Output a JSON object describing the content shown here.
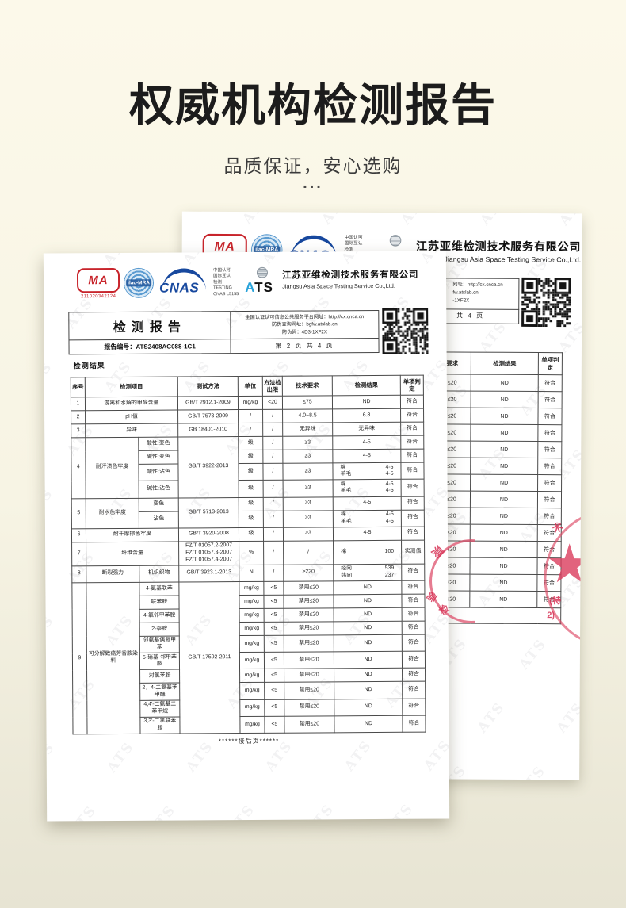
{
  "header": {
    "title": "权威机构检测报告",
    "subtitle": "品质保证，安心选购",
    "dots": "..."
  },
  "watermark_text": "ATS",
  "logos": {
    "cma_text": "MA",
    "cma_number": "211020342124",
    "ilac_text": "ilac-MRA",
    "cnas_text": "CNAS",
    "accreditation_lines": [
      "中国认可",
      "国际互认",
      "检测",
      "TESTING",
      "CNAS L5155"
    ],
    "ats_text": "ATS"
  },
  "company": {
    "name_cn": "江苏亚维检测技术服务有限公司",
    "name_en": "Jiangsu Asia Space Testing Service Co.,Ltd."
  },
  "front_page": {
    "report_header": {
      "report_title": "检测报告",
      "service_url_line": "全国认证认可信息公共服务平台网址：http://cx.cnca.cn",
      "anti_fake_url_line": "防伪查询网址：bgfw.atslab.cn",
      "anti_fake_code_line": "防伪码：4D3-1XF2X",
      "report_no_line": "报告编号：ATS2408AC088-1C1",
      "page_line": "第 2 页 共 4 页"
    },
    "results_label": "检测结果",
    "footer_note": "******接后页******",
    "table": {
      "header_cells": [
        {
          "t": "序号"
        },
        {
          "t": "检测项目",
          "cs": 2
        },
        {
          "t": "测试方法"
        },
        {
          "t": "单位"
        },
        {
          "t": "方法检出限"
        },
        {
          "t": "技术要求"
        },
        {
          "t": "检测结果"
        },
        {
          "t": "单项判定"
        }
      ],
      "rows": [
        [
          {
            "t": "1"
          },
          {
            "t": "游离和水解的甲醛含量",
            "cs": 2
          },
          {
            "t": "GB/T 2912.1-2009"
          },
          {
            "t": "mg/kg"
          },
          {
            "t": "<20"
          },
          {
            "t": "≤75"
          },
          {
            "t": "ND"
          },
          {
            "t": "符合"
          }
        ],
        [
          {
            "t": "2"
          },
          {
            "t": "pH值",
            "cs": 2
          },
          {
            "t": "GB/T 7573-2009"
          },
          {
            "t": "/"
          },
          {
            "t": "/"
          },
          {
            "t": "4.0~8.5"
          },
          {
            "t": "6.8"
          },
          {
            "t": "符合"
          }
        ],
        [
          {
            "t": "3"
          },
          {
            "t": "异味",
            "cs": 2
          },
          {
            "t": "GB 18401-2010"
          },
          {
            "t": "/"
          },
          {
            "t": "/"
          },
          {
            "t": "无异味"
          },
          {
            "t": "无异味"
          },
          {
            "t": "符合"
          }
        ],
        [
          {
            "t": "4",
            "rs": 4
          },
          {
            "t": "耐汗渍色牢度",
            "rs": 4
          },
          {
            "t": "酸性:变色"
          },
          {
            "t": "GB/T 3922-2013",
            "rs": 4
          },
          {
            "t": "级"
          },
          {
            "t": "/"
          },
          {
            "t": "≥3"
          },
          {
            "t": "4-5"
          },
          {
            "t": "符合"
          }
        ],
        [
          {
            "t": "碱性:变色"
          },
          {
            "t": "级"
          },
          {
            "t": "/"
          },
          {
            "t": "≥3"
          },
          {
            "t": "4-5"
          },
          {
            "t": "符合"
          }
        ],
        [
          {
            "t": "酸性:沾色"
          },
          {
            "t": "级"
          },
          {
            "t": "/"
          },
          {
            "t": "≥3"
          },
          {
            "pairs": [
              [
                "棉",
                "4-5"
              ],
              [
                "羊毛",
                "4-5"
              ]
            ]
          },
          {
            "t": "符合"
          }
        ],
        [
          {
            "t": "碱性:沾色"
          },
          {
            "t": "级"
          },
          {
            "t": "/"
          },
          {
            "t": "≥3"
          },
          {
            "pairs": [
              [
                "棉",
                "4-5"
              ],
              [
                "羊毛",
                "4-5"
              ]
            ]
          },
          {
            "t": "符合"
          }
        ],
        [
          {
            "t": "5",
            "rs": 2
          },
          {
            "t": "耐水色牢度",
            "rs": 2
          },
          {
            "t": "变色"
          },
          {
            "t": "GB/T 5713-2013",
            "rs": 2
          },
          {
            "t": "级"
          },
          {
            "t": "/"
          },
          {
            "t": "≥3"
          },
          {
            "t": "4-5"
          },
          {
            "t": "符合"
          }
        ],
        [
          {
            "t": "沾色"
          },
          {
            "t": "级"
          },
          {
            "t": "/"
          },
          {
            "t": "≥3"
          },
          {
            "pairs": [
              [
                "棉",
                "4-5"
              ],
              [
                "羊毛",
                "4-5"
              ]
            ]
          },
          {
            "t": "符合"
          }
        ],
        [
          {
            "t": "6"
          },
          {
            "t": "耐干摩擦色牢度",
            "cs": 2
          },
          {
            "t": "GB/T 3920-2008"
          },
          {
            "t": "级"
          },
          {
            "t": "/"
          },
          {
            "t": "≥3"
          },
          {
            "t": "4-5"
          },
          {
            "t": "符合"
          }
        ],
        [
          {
            "t": "7"
          },
          {
            "t": "纤维含量",
            "cs": 2
          },
          {
            "lines": [
              "FZ/T 01057.2-2007",
              "FZ/T 01057.3-2007",
              "FZ/T 01057.4-2007"
            ]
          },
          {
            "t": "%"
          },
          {
            "t": "/"
          },
          {
            "t": "/"
          },
          {
            "pairs": [
              [
                "棉",
                "100"
              ]
            ]
          },
          {
            "t": "实测值"
          }
        ],
        [
          {
            "t": "8"
          },
          {
            "t": "断裂强力"
          },
          {
            "t": "机织织物"
          },
          {
            "t": "GB/T 3923.1-2013"
          },
          {
            "t": "N"
          },
          {
            "t": "/"
          },
          {
            "t": "≥220"
          },
          {
            "pairs": [
              [
                "经向",
                "539"
              ],
              [
                "纬向",
                "237"
              ]
            ]
          },
          {
            "t": "符合"
          }
        ],
        [
          {
            "t": "9",
            "rs": 10
          },
          {
            "t": "可分解致癌芳香胺染料",
            "rs": 10
          },
          {
            "t": "4-氨基联苯"
          },
          {
            "t": "GB/T 17592-2011",
            "rs": 10
          },
          {
            "t": "mg/kg"
          },
          {
            "t": "<5"
          },
          {
            "t": "禁用≤20"
          },
          {
            "t": "ND"
          },
          {
            "t": "符合"
          }
        ],
        [
          {
            "t": "联苯胺"
          },
          {
            "t": "mg/kg"
          },
          {
            "t": "<5"
          },
          {
            "t": "禁用≤20"
          },
          {
            "t": "ND"
          },
          {
            "t": "符合"
          }
        ],
        [
          {
            "t": "4-氯邻甲苯胺"
          },
          {
            "t": "mg/kg"
          },
          {
            "t": "<5"
          },
          {
            "t": "禁用≤20"
          },
          {
            "t": "ND"
          },
          {
            "t": "符合"
          }
        ],
        [
          {
            "t": "2-萘胺"
          },
          {
            "t": "mg/kg"
          },
          {
            "t": "<5"
          },
          {
            "t": "禁用≤20"
          },
          {
            "t": "ND"
          },
          {
            "t": "符合"
          }
        ],
        [
          {
            "t": "邻氨基偶氮甲苯"
          },
          {
            "t": "mg/kg"
          },
          {
            "t": "<5"
          },
          {
            "t": "禁用≤20"
          },
          {
            "t": "ND"
          },
          {
            "t": "符合"
          }
        ],
        [
          {
            "t": "5-硝基-邻甲苯胺"
          },
          {
            "t": "mg/kg"
          },
          {
            "t": "<5"
          },
          {
            "t": "禁用≤20"
          },
          {
            "t": "ND"
          },
          {
            "t": "符合"
          }
        ],
        [
          {
            "t": "对氯苯胺"
          },
          {
            "t": "mg/kg"
          },
          {
            "t": "<5"
          },
          {
            "t": "禁用≤20"
          },
          {
            "t": "ND"
          },
          {
            "t": "符合"
          }
        ],
        [
          {
            "t": "2，4-二氨基苯甲醚"
          },
          {
            "t": "mg/kg"
          },
          {
            "t": "<5"
          },
          {
            "t": "禁用≤20"
          },
          {
            "t": "ND"
          },
          {
            "t": "符合"
          }
        ],
        [
          {
            "t": "4,4'-二氨基二苯甲烷"
          },
          {
            "t": "mg/kg"
          },
          {
            "t": "<5"
          },
          {
            "t": "禁用≤20"
          },
          {
            "t": "ND"
          },
          {
            "t": "符合"
          }
        ],
        [
          {
            "t": "3,3'-二氯联苯胺"
          },
          {
            "t": "mg/kg"
          },
          {
            "t": "<5"
          },
          {
            "t": "禁用≤20"
          },
          {
            "t": "ND"
          },
          {
            "t": "符合"
          }
        ]
      ]
    }
  },
  "back_page": {
    "header_fragment": {
      "line1": "网址：http://cx.cnca.cn",
      "line2": "fw.atslab.cn",
      "line3": "-1XF2X",
      "page_line": "共 4 页"
    },
    "table_fragment": {
      "headers": [
        "要求",
        "检测结果",
        "单项判定"
      ],
      "rows": [
        [
          "≤20",
          "ND",
          "符合"
        ],
        [
          "≤20",
          "ND",
          "符合"
        ],
        [
          "≤20",
          "ND",
          "符合"
        ],
        [
          "≤20",
          "ND",
          "符合"
        ],
        [
          "≤20",
          "ND",
          "符合"
        ],
        [
          "≤20",
          "ND",
          "符合"
        ],
        [
          "≤20",
          "ND",
          "符合"
        ],
        [
          "≤20",
          "ND",
          "符合"
        ],
        [
          "≤20",
          "ND",
          "符合"
        ],
        [
          "≤20",
          "ND",
          "符合"
        ],
        [
          "≤20",
          "ND",
          "符合"
        ],
        [
          "≤20",
          "ND",
          "符合"
        ],
        [
          "≤20",
          "ND",
          "符合"
        ],
        [
          "≤20",
          "ND",
          "符合"
        ]
      ]
    }
  },
  "stamps": {
    "seal_char1": "测",
    "seal_char2": "验",
    "seal_char3": "检",
    "edge_char1": "术",
    "edge_char2": "(特",
    "edge_char3": "2)"
  },
  "colors": {
    "bg_top": "#fcf9ea",
    "bg_bottom": "#e7e4d3",
    "cma_red": "#c8242b",
    "cnas_blue": "#17489e",
    "ilac_blue": "#3f86c2",
    "ats_blue": "#29a3da",
    "stamp_red": "#dd4a66",
    "ink": "#222222"
  }
}
